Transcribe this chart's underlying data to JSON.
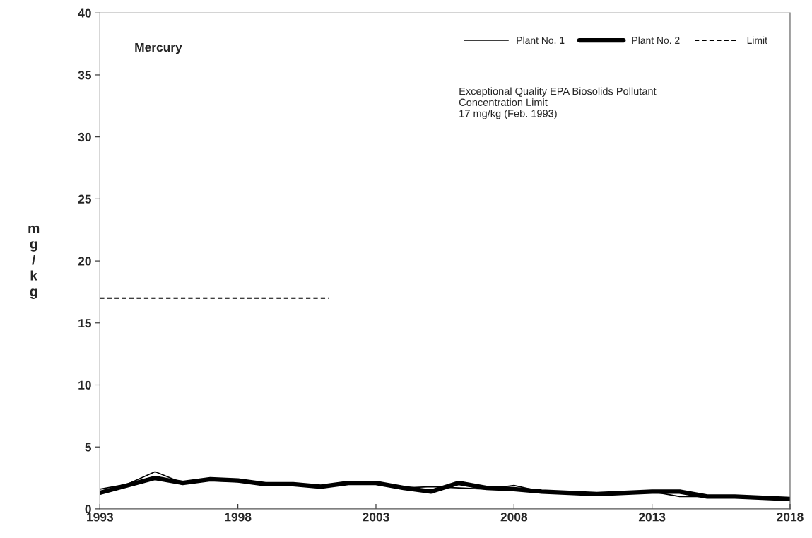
{
  "chart_data": {
    "type": "line",
    "ylabel": "mg/kg",
    "annotations": [
      "Mercury",
      "Exceptional Quality EPA Biosolids Pollutant\nConcentration Limit\n17 mg/kg (Feb. 1993)"
    ],
    "x": [
      1993,
      1994,
      1995,
      1996,
      1997,
      1998,
      1999,
      2000,
      2001,
      2002,
      2003,
      2004,
      2005,
      2006,
      2007,
      2008,
      2009,
      2010,
      2011,
      2012,
      2013,
      2014,
      2015,
      2016,
      2017,
      2018
    ],
    "series": [
      {
        "name": "Plant No. 1",
        "color": "#000000",
        "line_style": "solid",
        "values": [
          1.6,
          2.0,
          3.0,
          2.1,
          2.3,
          2.2,
          2.0,
          2.0,
          1.8,
          2.0,
          2.0,
          1.7,
          1.8,
          1.7,
          1.6,
          1.9,
          1.4,
          1.3,
          1.2,
          1.3,
          1.4,
          1.0,
          1.0,
          1.0,
          0.9,
          0.8
        ]
      },
      {
        "name": "Plant No. 2",
        "color": "#000000",
        "line_style": "solid",
        "values": [
          1.3,
          1.9,
          2.5,
          2.1,
          2.4,
          2.3,
          2.0,
          2.0,
          1.8,
          2.1,
          2.1,
          1.7,
          1.4,
          2.1,
          1.7,
          1.6,
          1.4,
          1.3,
          1.2,
          1.3,
          1.4,
          1.4,
          1.0,
          1.0,
          0.9,
          0.8
        ]
      },
      {
        "name": "Limit",
        "color": "#000000",
        "line_style": "dashed",
        "x": [
          1993,
          2001.3
        ],
        "values": [
          17,
          17
        ]
      }
    ],
    "xlim": [
      1993,
      2018
    ],
    "xticks": [
      1993,
      1998,
      2003,
      2008,
      2013,
      2018
    ],
    "ylim": [
      0,
      40
    ],
    "yticks": [
      0,
      5,
      10,
      15,
      20,
      25,
      30,
      35,
      40
    ],
    "grid": false,
    "legend": "top right",
    "marker": "none"
  }
}
